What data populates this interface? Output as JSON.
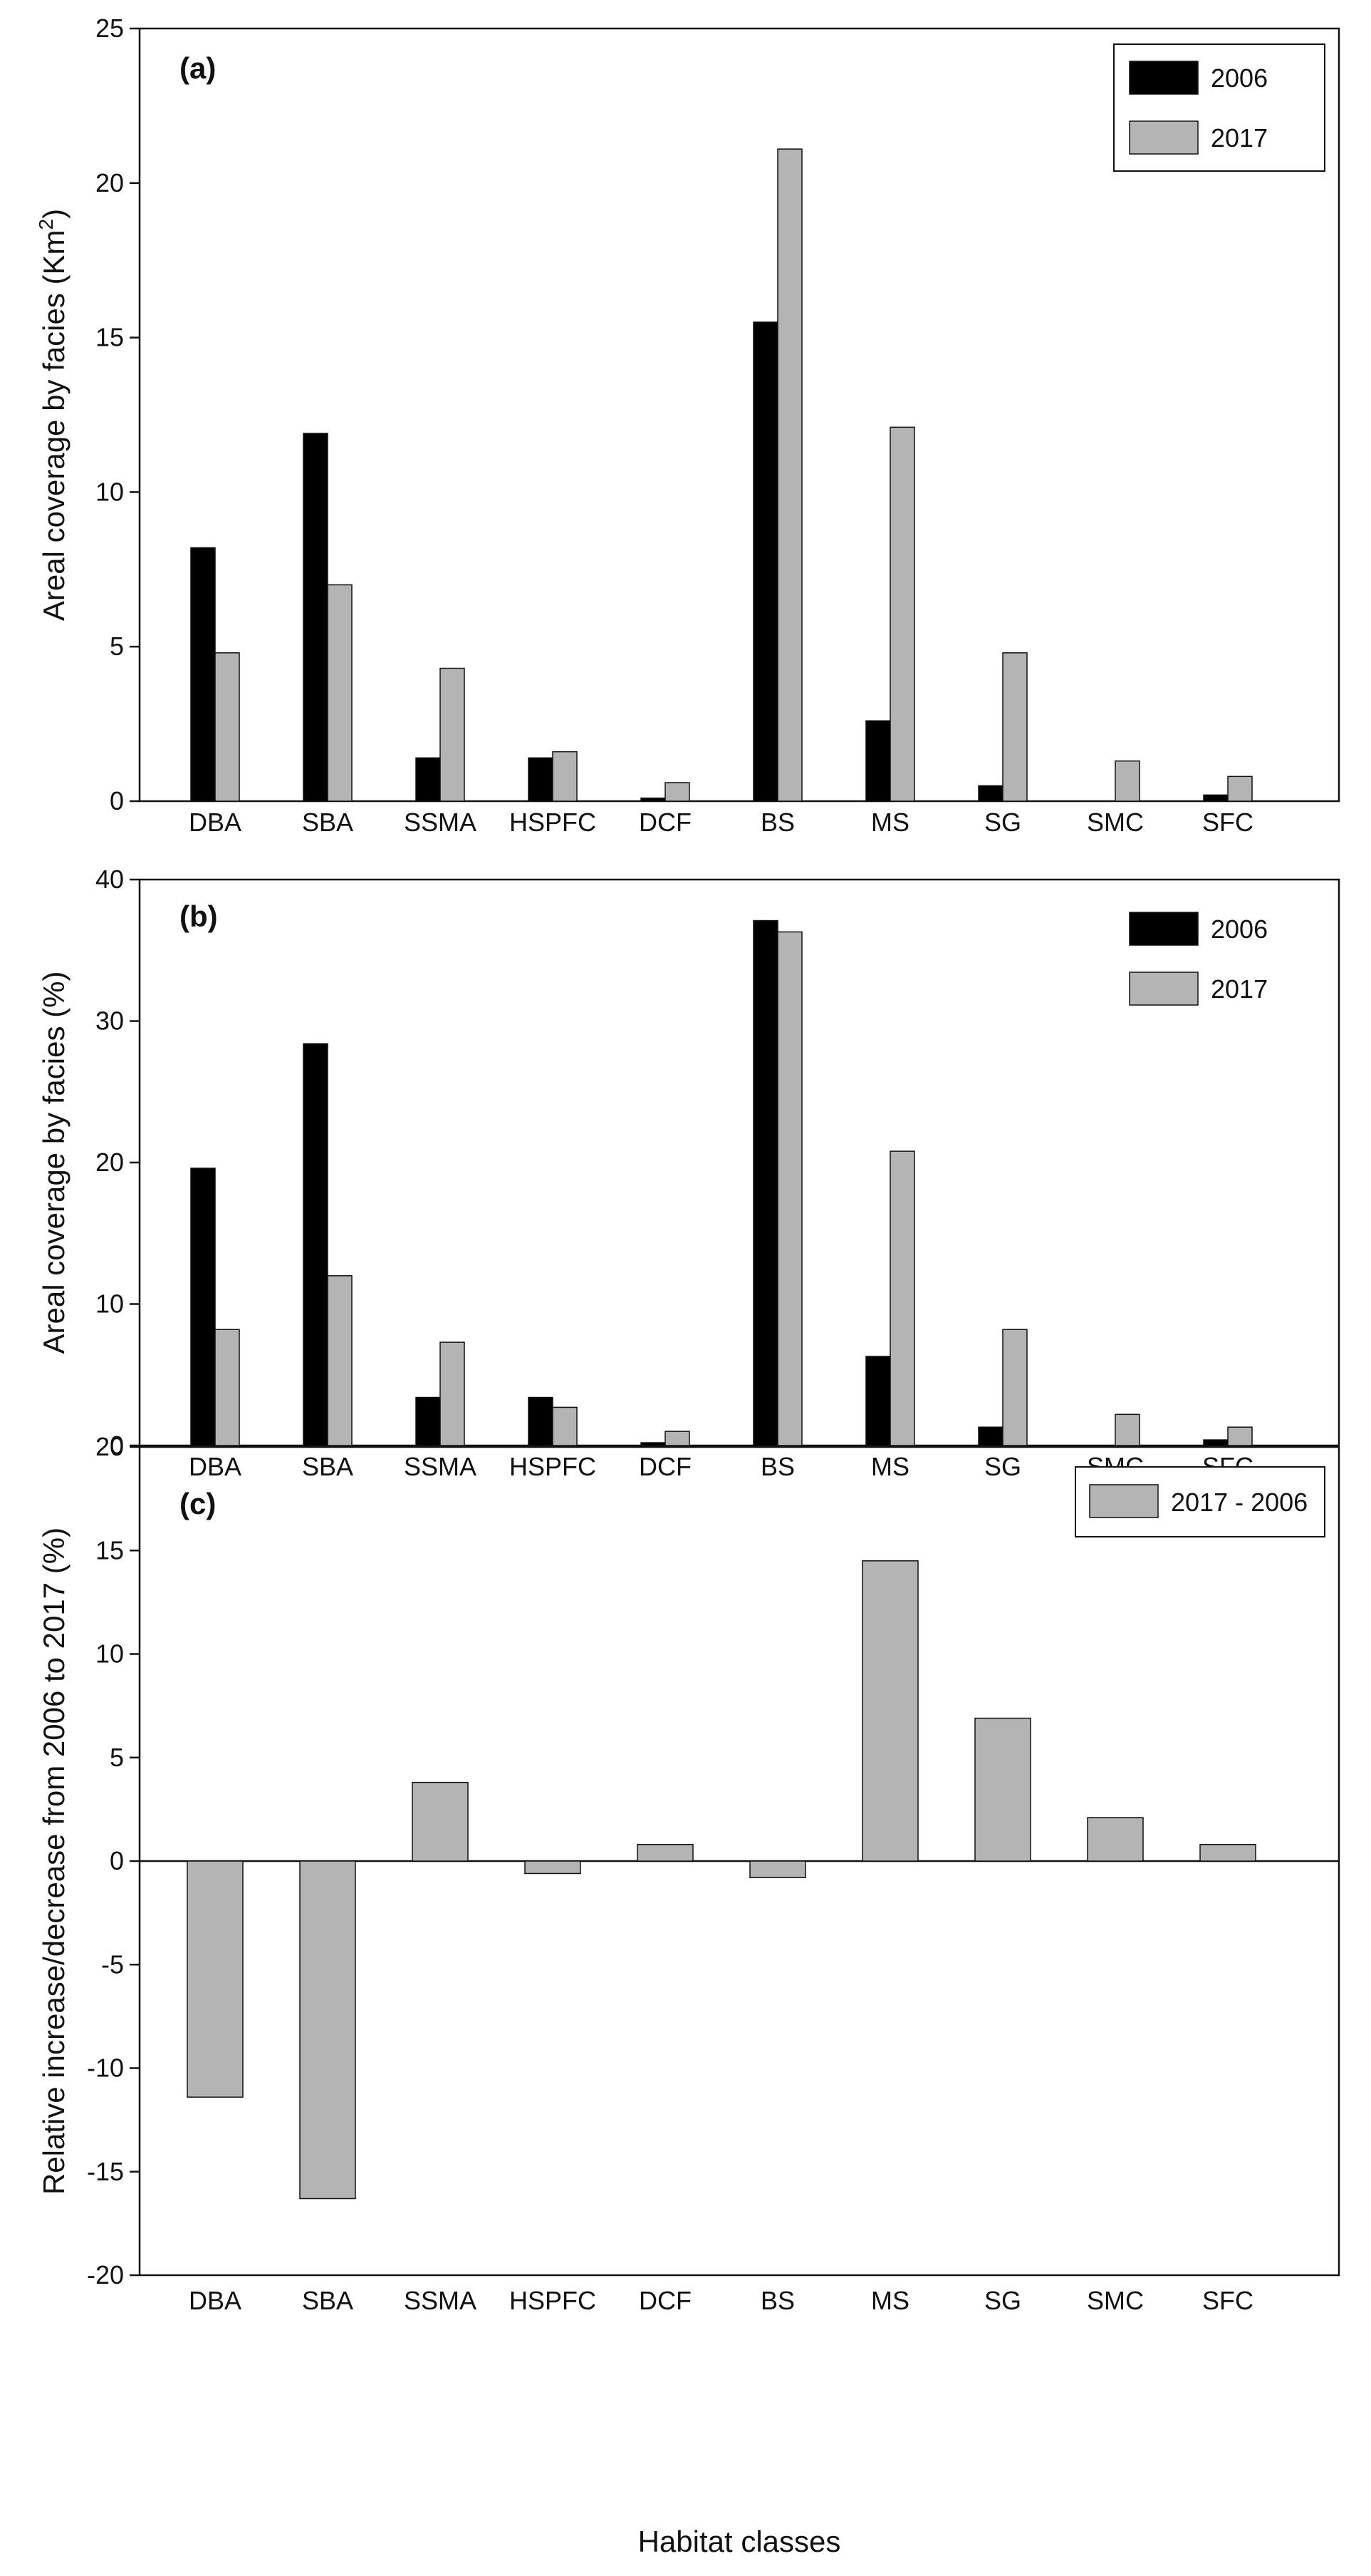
{
  "colors": {
    "series_2006": "#000000",
    "series_2017": "#b4b4b4",
    "difference": "#b4b4b4",
    "bar_outline": "#111111",
    "axis": "#111111"
  },
  "shared_xlabel": "Habitat classes",
  "chart_data": [
    {
      "type": "bar",
      "panel_label": "(a)",
      "title": "",
      "ylabel_main": "Areal coverage by facies (Km",
      "ylabel_sup": "2",
      "ylabel_end": ")",
      "categories": [
        "DBA",
        "SBA",
        "SSMA",
        "HSPFC",
        "DCF",
        "BS",
        "MS",
        "SG",
        "SMC",
        "SFC"
      ],
      "series": [
        {
          "name": "2006",
          "values": [
            8.2,
            11.9,
            1.4,
            1.4,
            0.1,
            15.5,
            2.6,
            0.5,
            0.0,
            0.2
          ]
        },
        {
          "name": "2017",
          "values": [
            4.8,
            7.0,
            4.3,
            1.6,
            0.6,
            21.1,
            12.1,
            4.8,
            1.3,
            0.8
          ]
        }
      ],
      "ylim": [
        0,
        25
      ],
      "yticks": [
        0,
        5,
        10,
        15,
        20,
        25
      ],
      "legend_position": "top-right",
      "grid": false
    },
    {
      "type": "bar",
      "panel_label": "(b)",
      "title": "",
      "ylabel_main": "Areal coverage by facies (%)",
      "ylabel_sup": "",
      "ylabel_end": "",
      "categories": [
        "DBA",
        "SBA",
        "SSMA",
        "HSPFC",
        "DCF",
        "BS",
        "MS",
        "SG",
        "SMC",
        "SFC"
      ],
      "series": [
        {
          "name": "2006",
          "values": [
            19.6,
            28.4,
            3.4,
            3.4,
            0.2,
            37.1,
            6.3,
            1.3,
            0.0,
            0.4
          ]
        },
        {
          "name": "2017",
          "values": [
            8.2,
            12.0,
            7.3,
            2.7,
            1.0,
            36.3,
            20.8,
            8.2,
            2.2,
            1.3
          ]
        }
      ],
      "ylim": [
        0,
        40
      ],
      "yticks": [
        0,
        10,
        20,
        30,
        40
      ],
      "legend_position": "top-right",
      "grid": false
    },
    {
      "type": "bar",
      "panel_label": "(c)",
      "title": "",
      "ylabel_main": "Relative increase/decrease from 2006 to 2017 (%)",
      "ylabel_sup": "",
      "ylabel_end": "",
      "categories": [
        "DBA",
        "SBA",
        "SSMA",
        "HSPFC",
        "DCF",
        "BS",
        "MS",
        "SG",
        "SMC",
        "SFC"
      ],
      "series": [
        {
          "name": "2017 - 2006",
          "values": [
            -11.4,
            -16.3,
            3.8,
            -0.6,
            0.8,
            -0.8,
            14.5,
            6.9,
            2.1,
            0.8
          ]
        }
      ],
      "ylim": [
        -20,
        20
      ],
      "yticks": [
        -20,
        -15,
        -10,
        -5,
        0,
        5,
        10,
        15,
        20
      ],
      "legend_position": "top-right",
      "grid": false
    }
  ]
}
